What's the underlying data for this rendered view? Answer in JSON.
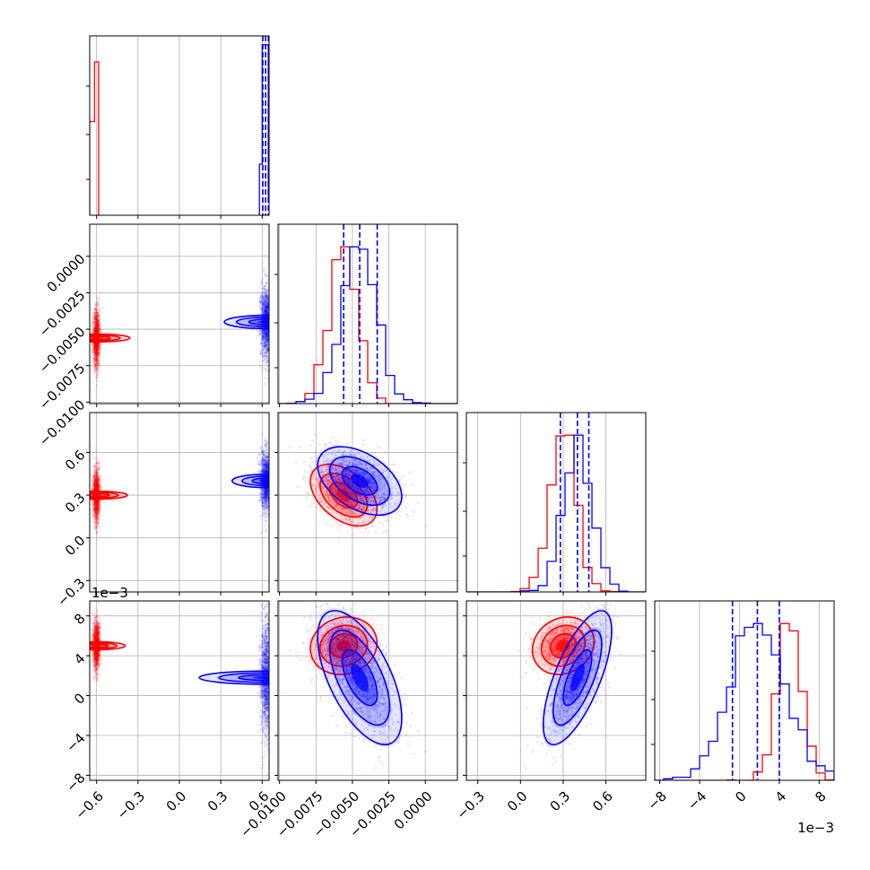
{
  "chart_data": {
    "type": "scatter",
    "figure": "corner plot",
    "title": "",
    "parameters": [
      {
        "index": 0,
        "range": [
          -0.65,
          0.65
        ],
        "ticks": [
          -0.6,
          -0.3,
          0.0,
          0.3,
          0.6
        ],
        "tick_labels": [
          "−0.6",
          "−0.3",
          "0.0",
          "0.3",
          "0.6"
        ],
        "offset_label": ""
      },
      {
        "index": 1,
        "range": [
          -0.0101,
          0.0022
        ],
        "ticks": [
          -0.01,
          -0.0075,
          -0.005,
          -0.0025,
          0.0
        ],
        "tick_labels": [
          "−0.0100",
          "−0.0075",
          "−0.0050",
          "−0.0025",
          "0.0000"
        ],
        "offset_label": ""
      },
      {
        "index": 2,
        "range": [
          -0.38,
          0.88
        ],
        "ticks": [
          -0.3,
          0.0,
          0.3,
          0.6
        ],
        "tick_labels": [
          "−0.3",
          "0.0",
          "0.3",
          "0.6"
        ],
        "offset_label": ""
      },
      {
        "index": 3,
        "range": [
          -0.0085,
          0.0095
        ],
        "ticks": [
          -0.008,
          -0.004,
          0.0,
          0.004,
          0.008
        ],
        "tick_labels": [
          "−8",
          "−4",
          "0",
          "4",
          "8"
        ],
        "offset_label": "1e−3"
      }
    ],
    "series": [
      {
        "color": "#ff0000",
        "mean": [
          -0.6,
          -0.0056,
          0.3,
          0.005
        ],
        "std": [
          0.012,
          0.00095,
          0.09,
          0.0012
        ],
        "corr": [
          [
            1,
            0,
            0,
            0
          ],
          [
            0,
            1,
            -0.45,
            0.1
          ],
          [
            0,
            -0.45,
            1,
            0.15
          ],
          [
            0,
            0.1,
            0.15,
            1
          ]
        ]
      },
      {
        "color": "#0000ff",
        "mean": [
          0.63,
          -0.0045,
          0.4,
          0.0018
        ],
        "std": [
          0.02,
          0.0012,
          0.1,
          0.0028
        ],
        "corr": [
          [
            1,
            0,
            0,
            0
          ],
          [
            0,
            1,
            -0.45,
            -0.6
          ],
          [
            0,
            -0.45,
            1,
            0.7
          ],
          [
            0,
            -0.6,
            0.7,
            1
          ]
        ]
      }
    ],
    "quantile_lines": [
      {
        "param": 0,
        "values": [
          0.605,
          0.625,
          0.645
        ]
      },
      {
        "param": 1,
        "values": [
          -0.0056,
          -0.0045,
          -0.0033
        ]
      },
      {
        "param": 2,
        "values": [
          0.28,
          0.4,
          0.48
        ]
      },
      {
        "param": 3,
        "values": [
          -0.0007,
          0.0018,
          0.004
        ]
      }
    ],
    "quantile_line_color": "#0000ff",
    "histograms": [
      {
        "param": 0,
        "red": [
          {
            "x0": -0.65,
            "x1": -0.615,
            "h": 0.55
          },
          {
            "x0": -0.615,
            "x1": -0.585,
            "h": 0.9
          }
        ],
        "blue": [
          {
            "x0": 0.58,
            "x1": 0.6,
            "h": 0.3
          },
          {
            "x0": 0.6,
            "x1": 0.615,
            "h": 1.0
          },
          {
            "x0": 0.615,
            "x1": 0.63,
            "h": 1.0
          },
          {
            "x0": 0.63,
            "x1": 0.645,
            "h": 1.0
          },
          {
            "x0": 0.645,
            "x1": 0.665,
            "h": 0.08
          }
        ]
      }
    ],
    "grid": true
  }
}
